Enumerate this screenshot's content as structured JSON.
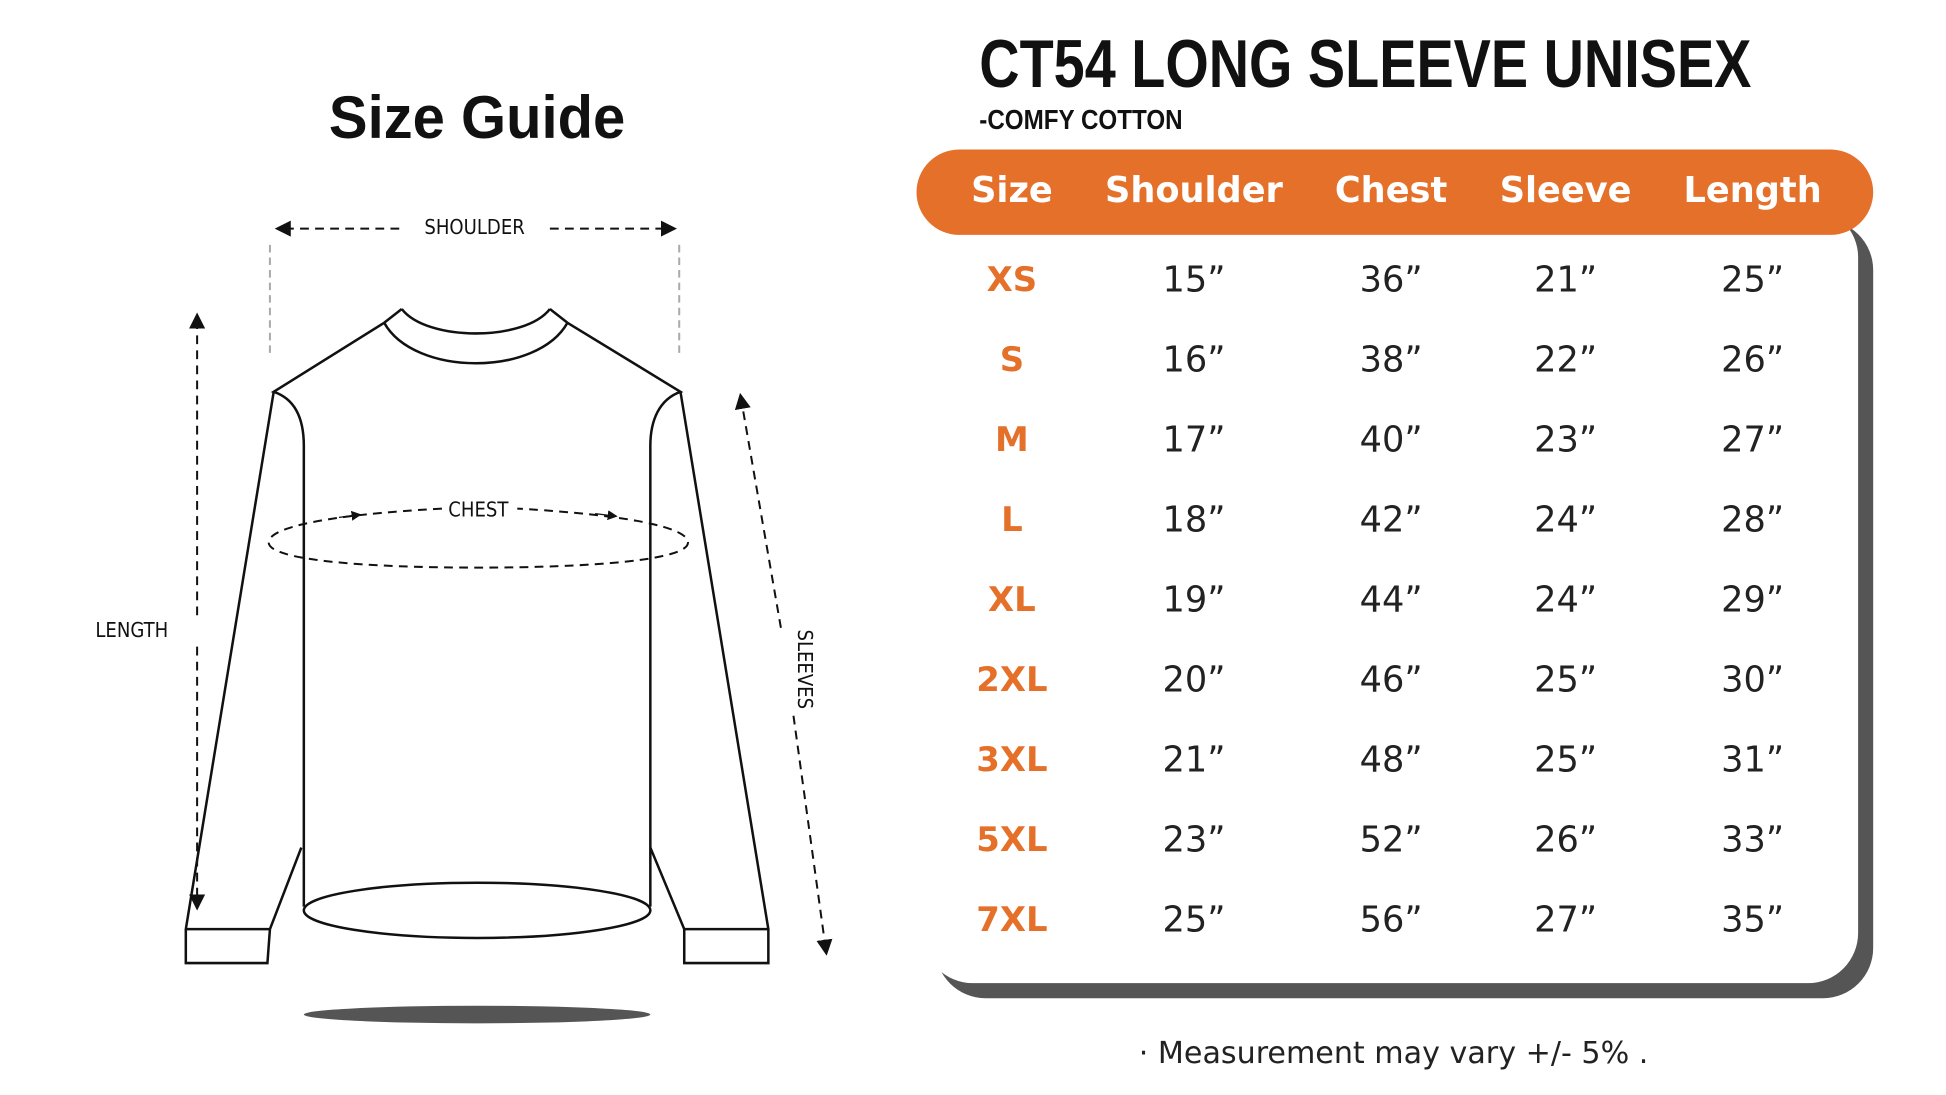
{
  "title": "Size Guide",
  "diagram": {
    "shoulder": "SHOULDER",
    "chest": "CHEST",
    "length": "LENGTH",
    "sleeves": "SLEEVES"
  },
  "product": {
    "title": "CT54 LONG SLEEVE UNISEX",
    "subtitle": "-COMFY COTTON"
  },
  "table": {
    "header": [
      "Size",
      "Shoulder",
      "Chest",
      "Sleeve",
      "Length"
    ],
    "rows": [
      [
        "XS",
        "15”",
        "36”",
        "21”",
        "25”"
      ],
      [
        "S",
        "16”",
        "38”",
        "22”",
        "26”"
      ],
      [
        "M",
        "17”",
        "40”",
        "23”",
        "27”"
      ],
      [
        "L",
        "18”",
        "42”",
        "24”",
        "28”"
      ],
      [
        "XL",
        "19”",
        "44”",
        "24”",
        "29”"
      ],
      [
        "2XL",
        "20”",
        "46”",
        "25”",
        "30”"
      ],
      [
        "3XL",
        "21”",
        "48”",
        "25”",
        "31”"
      ],
      [
        "5XL",
        "23”",
        "52”",
        "26”",
        "33”"
      ],
      [
        "7XL",
        "25”",
        "56”",
        "27”",
        "35”"
      ]
    ]
  },
  "footnote": "· Measurement may vary +/- 5% ."
}
